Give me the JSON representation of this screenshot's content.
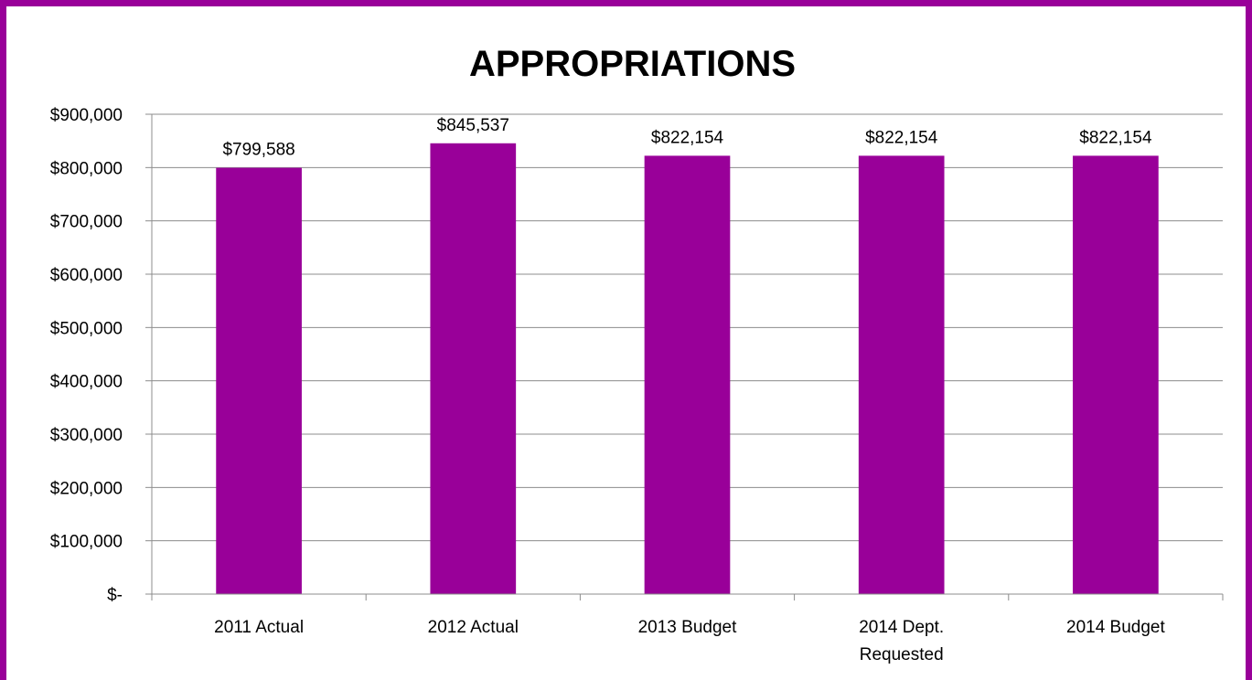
{
  "chart_data": {
    "type": "bar",
    "title": "APPROPRIATIONS",
    "categories": [
      "2011 Actual",
      "2012 Actual",
      "2013 Budget",
      "2014 Dept. Requested",
      "2014 Budget"
    ],
    "category_lines": [
      [
        "2011 Actual"
      ],
      [
        "2012 Actual"
      ],
      [
        "2013 Budget"
      ],
      [
        "2014 Dept.",
        "Requested"
      ],
      [
        "2014 Budget"
      ]
    ],
    "values": [
      799588,
      845537,
      822154,
      822154,
      822154
    ],
    "data_labels": [
      "$799,588",
      "$845,537",
      "$822,154",
      "$822,154",
      "$822,154"
    ],
    "y_tick_labels": [
      "$-",
      "$100,000",
      "$200,000",
      "$300,000",
      "$400,000",
      "$500,000",
      "$600,000",
      "$700,000",
      "$800,000",
      "$900,000"
    ],
    "ylim": [
      0,
      900000
    ],
    "y_step": 100000,
    "grid": true,
    "legend": "none",
    "xlabel": "",
    "ylabel": "",
    "colors": {
      "bar": "#990099",
      "border": "#990099",
      "grid": "#8c8c8c"
    }
  }
}
